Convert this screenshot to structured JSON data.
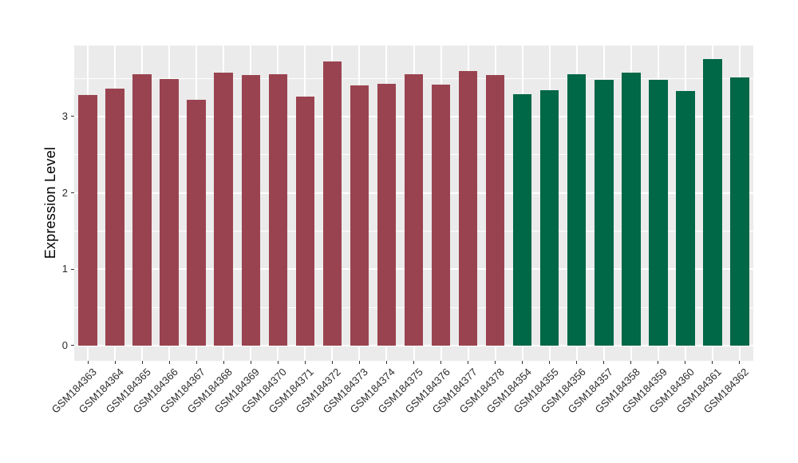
{
  "chart_data": {
    "type": "bar",
    "title": "",
    "xlabel": "",
    "ylabel": "Expression Level",
    "ylim": [
      0,
      3.93
    ],
    "yticks": [
      0,
      1,
      2,
      3
    ],
    "yticks_minor": [
      0.5,
      1.5,
      2.5,
      3.5
    ],
    "grid": "major and minor horizontal white lines, vertical white line at each category center, grey panel",
    "legend_position": "none",
    "panel_bg": "#EBEBEB",
    "grid_color": "#FFFFFF",
    "tick_color": "#333333",
    "axis_text_color": "#2b2b2b",
    "group_colors": {
      "red": "#9A4350",
      "green": "#006747"
    },
    "categories": [
      "GSM184363",
      "GSM184364",
      "GSM184365",
      "GSM184366",
      "GSM184367",
      "GSM184368",
      "GSM184369",
      "GSM184370",
      "GSM184371",
      "GSM184372",
      "GSM184373",
      "GSM184374",
      "GSM184375",
      "GSM184376",
      "GSM184377",
      "GSM184378",
      "GSM184354",
      "GSM184355",
      "GSM184356",
      "GSM184357",
      "GSM184358",
      "GSM184359",
      "GSM184360",
      "GSM184361",
      "GSM184362"
    ],
    "values": [
      3.28,
      3.37,
      3.55,
      3.49,
      3.22,
      3.57,
      3.54,
      3.55,
      3.26,
      3.72,
      3.41,
      3.43,
      3.55,
      3.42,
      3.6,
      3.54,
      3.29,
      3.34,
      3.55,
      3.48,
      3.57,
      3.48,
      3.33,
      3.75,
      3.51
    ],
    "bar_groups": [
      "red",
      "red",
      "red",
      "red",
      "red",
      "red",
      "red",
      "red",
      "red",
      "red",
      "red",
      "red",
      "red",
      "red",
      "red",
      "red",
      "green",
      "green",
      "green",
      "green",
      "green",
      "green",
      "green",
      "green",
      "green"
    ]
  }
}
